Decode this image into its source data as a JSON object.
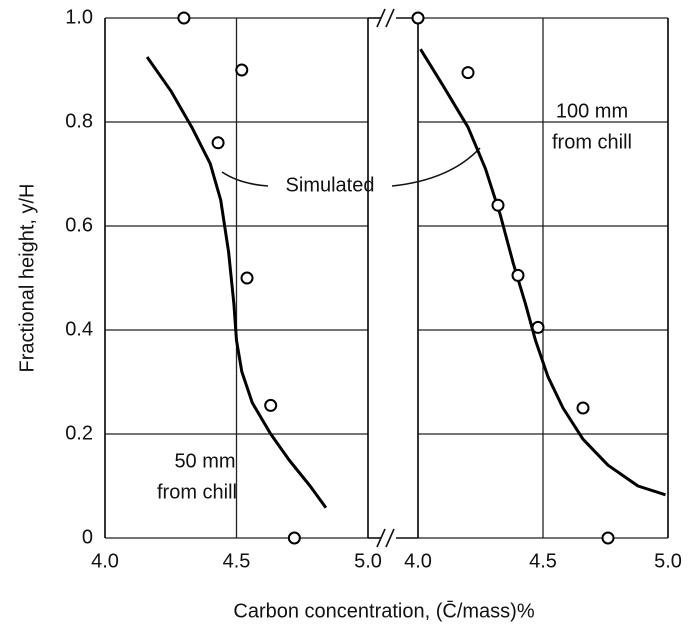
{
  "chart_data": [
    {
      "type": "line",
      "ylabel": "Fractional height, y/H",
      "xlabel": "Carbon concentration, (C̄/mass)%",
      "xlim": [
        4,
        5
      ],
      "xticks": [
        {
          "value": 4,
          "label": "4.0"
        },
        4.5,
        {
          "value": 5,
          "label": "5.0"
        }
      ],
      "ylim": [
        0,
        1
      ],
      "yticks": [
        0,
        0.2,
        0.4,
        0.6,
        0.8,
        {
          "value": 1,
          "label": "1.0"
        }
      ],
      "grid": true,
      "annotations": [
        "Simulated",
        "50 mm",
        "from chill"
      ],
      "series": [
        {
          "type": "line",
          "color": "#000000",
          "x": [
            4.16,
            4.25,
            4.33,
            4.4,
            4.44,
            4.47,
            4.49,
            4.5,
            4.52,
            4.56,
            4.63,
            4.7,
            4.78,
            4.84
          ],
          "values": [
            0.925,
            0.86,
            0.79,
            0.72,
            0.65,
            0.55,
            0.45,
            0.38,
            0.32,
            0.26,
            0.2,
            0.15,
            0.1,
            0.058
          ]
        },
        {
          "type": "scatter",
          "color": "#000000",
          "x": [
            4.3,
            4.43,
            4.52,
            4.54,
            4.63,
            4.72
          ],
          "values": [
            1.0,
            0.76,
            0.9,
            0.5,
            0.255,
            0.0
          ]
        }
      ]
    },
    {
      "type": "line",
      "xlim": [
        4,
        5
      ],
      "xticks": [
        {
          "value": 4,
          "label": "4.0"
        },
        4.5,
        {
          "value": 5,
          "label": "5.0"
        }
      ],
      "grid": true,
      "annotations": [
        "100 mm",
        "from chill"
      ],
      "series": [
        {
          "type": "line",
          "color": "#000000",
          "x": [
            4.01,
            4.1,
            4.2,
            4.27,
            4.33,
            4.38,
            4.43,
            4.47,
            4.52,
            4.58,
            4.66,
            4.76,
            4.88,
            4.99
          ],
          "values": [
            0.94,
            0.87,
            0.79,
            0.71,
            0.62,
            0.53,
            0.45,
            0.38,
            0.31,
            0.25,
            0.19,
            0.14,
            0.1,
            0.083
          ]
        },
        {
          "type": "scatter",
          "color": "#000000",
          "x": [
            4.0,
            4.2,
            4.32,
            4.4,
            4.48,
            4.66,
            4.76
          ],
          "values": [
            1.0,
            0.895,
            0.64,
            0.505,
            0.405,
            0.25,
            0.0
          ]
        }
      ]
    }
  ]
}
